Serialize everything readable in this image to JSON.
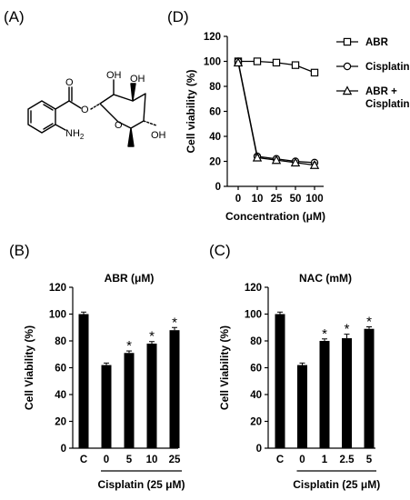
{
  "panels": {
    "a": "(A)",
    "b": "(B)",
    "c": "(C)",
    "d": "(D)"
  },
  "structure": {
    "oh1": "OH",
    "oh2": "OH",
    "oh3": "OH",
    "o_ester1": "O",
    "o_ester2": "O",
    "o_ring": "O",
    "nh2": "NH",
    "nh2_sub": "2"
  },
  "chart_data": [
    {
      "id": "D",
      "type": "line",
      "title": "",
      "xlabel": "Concentration  (μM)",
      "ylabel": "Cell viability (%)",
      "ylim": [
        0,
        120
      ],
      "yticks": [
        "0",
        "20",
        "40",
        "60",
        "80",
        "100",
        "120"
      ],
      "categories": [
        "0",
        "10",
        "25",
        "50",
        "100"
      ],
      "legend_position": "right",
      "series": [
        {
          "name": "ABR",
          "marker": "square",
          "values": [
            100,
            100,
            99,
            97,
            91
          ],
          "errors": [
            1,
            1,
            1,
            1,
            1.5
          ]
        },
        {
          "name": "Cisplatin",
          "marker": "circle",
          "values": [
            100,
            24,
            22,
            20,
            19
          ],
          "errors": [
            1,
            2,
            1.5,
            1.5,
            1.5
          ]
        },
        {
          "name": "ABR + Cisplatin",
          "marker": "triangle",
          "values": [
            99,
            23,
            21,
            19,
            17
          ],
          "errors": [
            1,
            2,
            1.5,
            1.5,
            2
          ]
        }
      ]
    },
    {
      "id": "B",
      "type": "bar",
      "title": "ABR (μM)",
      "xlabel": "Cisplatin  (25 μM)",
      "ylabel": "Cell Viability  (%)",
      "ylim": [
        0,
        120
      ],
      "yticks": [
        "0",
        "20",
        "40",
        "60",
        "80",
        "100",
        "120"
      ],
      "categories": [
        "C",
        "0",
        "5",
        "10",
        "25"
      ],
      "values": [
        100,
        62,
        71,
        78,
        88
      ],
      "errors": [
        1.5,
        1.5,
        1.5,
        1.5,
        2
      ],
      "significant": [
        false,
        false,
        true,
        true,
        true
      ],
      "star": "*"
    },
    {
      "id": "C",
      "type": "bar",
      "title": "NAC (mM)",
      "xlabel": "Cisplatin  (25 μM)",
      "ylabel": "Cell Viability  (%)",
      "ylim": [
        0,
        120
      ],
      "yticks": [
        "0",
        "20",
        "40",
        "60",
        "80",
        "100",
        "120"
      ],
      "categories": [
        "C",
        "0",
        "1",
        "2.5",
        "5"
      ],
      "values": [
        100,
        62,
        80,
        82,
        89
      ],
      "errors": [
        1.5,
        1.5,
        1.5,
        3,
        1.5
      ],
      "significant": [
        false,
        false,
        true,
        true,
        true
      ],
      "star": "*"
    }
  ]
}
